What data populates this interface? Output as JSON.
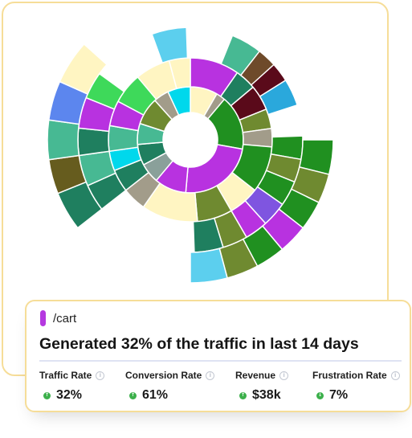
{
  "colors": {
    "accent": "#b539e0",
    "card_border": "#f6dd98",
    "trend_up": "#3cb04b",
    "trend_down": "#3cb04b"
  },
  "chart_data": {
    "type": "sunburst",
    "rings": [
      [
        {
          "start": 0,
          "end": 30,
          "color": "#fff5c2"
        },
        {
          "start": 30,
          "end": 40,
          "color": "#a29c8a"
        },
        {
          "start": 40,
          "end": 100,
          "color": "#209020"
        },
        {
          "start": 100,
          "end": 185,
          "color": "#b832e0"
        },
        {
          "start": 185,
          "end": 220,
          "color": "#b832e0"
        },
        {
          "start": 220,
          "end": 242,
          "color": "#8aa09a"
        },
        {
          "start": 242,
          "end": 265,
          "color": "#1f7f5f"
        },
        {
          "start": 265,
          "end": 288,
          "color": "#47b993"
        },
        {
          "start": 288,
          "end": 318,
          "color": "#6f8a30"
        },
        {
          "start": 318,
          "end": 335,
          "color": "#a29c8a"
        },
        {
          "start": 335,
          "end": 360,
          "color": "#00d8ec"
        }
      ],
      [
        {
          "start": 0,
          "end": 35,
          "color": "#b832e0"
        },
        {
          "start": 35,
          "end": 50,
          "color": "#1f7f5f"
        },
        {
          "start": 50,
          "end": 68,
          "color": "#5a0a1a"
        },
        {
          "start": 68,
          "end": 82,
          "color": "#6f8a30"
        },
        {
          "start": 82,
          "end": 95,
          "color": "#a29c8a"
        },
        {
          "start": 95,
          "end": 128,
          "color": "#209020"
        },
        {
          "start": 128,
          "end": 150,
          "color": "#fff5c2"
        },
        {
          "start": 150,
          "end": 175,
          "color": "#6f8a30"
        },
        {
          "start": 175,
          "end": 215,
          "color": "#fff5c2"
        },
        {
          "start": 215,
          "end": 232,
          "color": "#a29c8a"
        },
        {
          "start": 232,
          "end": 248,
          "color": "#1f7f5f"
        },
        {
          "start": 248,
          "end": 262,
          "color": "#00d8ec"
        },
        {
          "start": 262,
          "end": 280,
          "color": "#47b993"
        },
        {
          "start": 280,
          "end": 298,
          "color": "#b832e0"
        },
        {
          "start": 298,
          "end": 320,
          "color": "#3ed95a"
        },
        {
          "start": 320,
          "end": 345,
          "color": "#fff5c2"
        },
        {
          "start": 345,
          "end": 360,
          "color": "#fff5c2"
        }
      ],
      [
        {
          "start": 22,
          "end": 40,
          "color": "#47b993"
        },
        {
          "start": 38,
          "end": 52,
          "color": "#6e4a2a"
        },
        {
          "start": 48,
          "end": 64,
          "color": "#5a0a1a"
        },
        {
          "start": 58,
          "end": 72,
          "color": "#2aa8dc"
        },
        {
          "start": 88,
          "end": 100,
          "color": "#209020"
        },
        {
          "start": 100,
          "end": 112,
          "color": "#6f8a30"
        },
        {
          "start": 112,
          "end": 125,
          "color": "#209020"
        },
        {
          "start": 125,
          "end": 138,
          "color": "#7f55e0"
        },
        {
          "start": 138,
          "end": 150,
          "color": "#b832e0"
        },
        {
          "start": 150,
          "end": 163,
          "color": "#6f8a30"
        },
        {
          "start": 163,
          "end": 178,
          "color": "#1f7f5f"
        },
        {
          "start": 232,
          "end": 246,
          "color": "#1f7f5f"
        },
        {
          "start": 246,
          "end": 262,
          "color": "#47b993"
        },
        {
          "start": 262,
          "end": 276,
          "color": "#1f7f5f"
        },
        {
          "start": 276,
          "end": 292,
          "color": "#b832e0"
        },
        {
          "start": 292,
          "end": 306,
          "color": "#3ed95a"
        },
        {
          "start": 340,
          "end": 358,
          "color": "#5ccfee"
        }
      ],
      [
        {
          "start": 90,
          "end": 104,
          "color": "#209020"
        },
        {
          "start": 104,
          "end": 116,
          "color": "#6f8a30"
        },
        {
          "start": 116,
          "end": 128,
          "color": "#209020"
        },
        {
          "start": 128,
          "end": 140,
          "color": "#b832e0"
        },
        {
          "start": 140,
          "end": 152,
          "color": "#209020"
        },
        {
          "start": 152,
          "end": 165,
          "color": "#6f8a30"
        },
        {
          "start": 165,
          "end": 180,
          "color": "#5ccfee"
        },
        {
          "start": 232,
          "end": 248,
          "color": "#1f7f5f"
        },
        {
          "start": 248,
          "end": 262,
          "color": "#665c1e"
        },
        {
          "start": 262,
          "end": 278,
          "color": "#47b993"
        },
        {
          "start": 278,
          "end": 294,
          "color": "#5c86ee"
        },
        {
          "start": 294,
          "end": 312,
          "color": "#fff5c2"
        }
      ]
    ]
  },
  "card": {
    "route": "/cart",
    "headline": "Generated 32% of the traffic in last 14 days",
    "info_glyph": "i",
    "metrics": [
      {
        "label": "Traffic Rate",
        "value": "32%",
        "trend_glyph": "↑",
        "trend": "up"
      },
      {
        "label": "Conversion Rate",
        "value": "61%",
        "trend_glyph": "↑",
        "trend": "up"
      },
      {
        "label": "Revenue",
        "value": "$38k",
        "trend_glyph": "↑",
        "trend": "up"
      },
      {
        "label": "Frustration Rate",
        "value": "7%",
        "trend_glyph": "↓",
        "trend": "down"
      }
    ]
  }
}
